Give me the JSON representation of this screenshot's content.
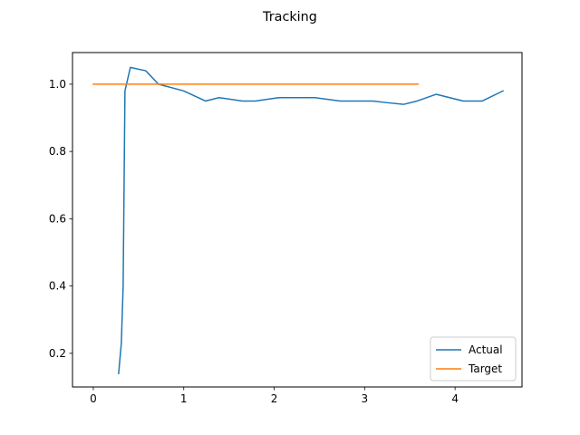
{
  "chart_data": {
    "type": "line",
    "title": "Tracking",
    "xlabel": "",
    "ylabel": "",
    "xlim": [
      -0.23,
      4.74
    ],
    "ylim": [
      0.1,
      1.094
    ],
    "xticks": [
      0,
      1,
      2,
      3,
      4
    ],
    "yticks": [
      0.2,
      0.4,
      0.6,
      0.8,
      1.0
    ],
    "xtick_labels": [
      "0",
      "1",
      "2",
      "3",
      "4"
    ],
    "ytick_labels": [
      "0.2",
      "0.4",
      "0.6",
      "0.8",
      "1.0"
    ],
    "grid": false,
    "legend_position": "lower-right",
    "series": [
      {
        "name": "Actual",
        "color": "#1f77b4",
        "x": [
          0.28,
          0.31,
          0.33,
          0.35,
          0.41,
          0.58,
          0.72,
          1.0,
          1.24,
          1.39,
          1.65,
          1.79,
          2.05,
          2.45,
          2.73,
          3.09,
          3.25,
          3.43,
          3.58,
          3.79,
          4.09,
          4.3,
          4.53
        ],
        "y": [
          0.14,
          0.23,
          0.4,
          0.98,
          1.05,
          1.04,
          1.0,
          0.98,
          0.95,
          0.96,
          0.95,
          0.95,
          0.96,
          0.96,
          0.95,
          0.95,
          0.945,
          0.94,
          0.95,
          0.97,
          0.95,
          0.95,
          0.98
        ]
      },
      {
        "name": "Target",
        "color": "#ff7f0e",
        "x": [
          0.0,
          3.59
        ],
        "y": [
          1.0,
          1.0
        ]
      }
    ]
  }
}
